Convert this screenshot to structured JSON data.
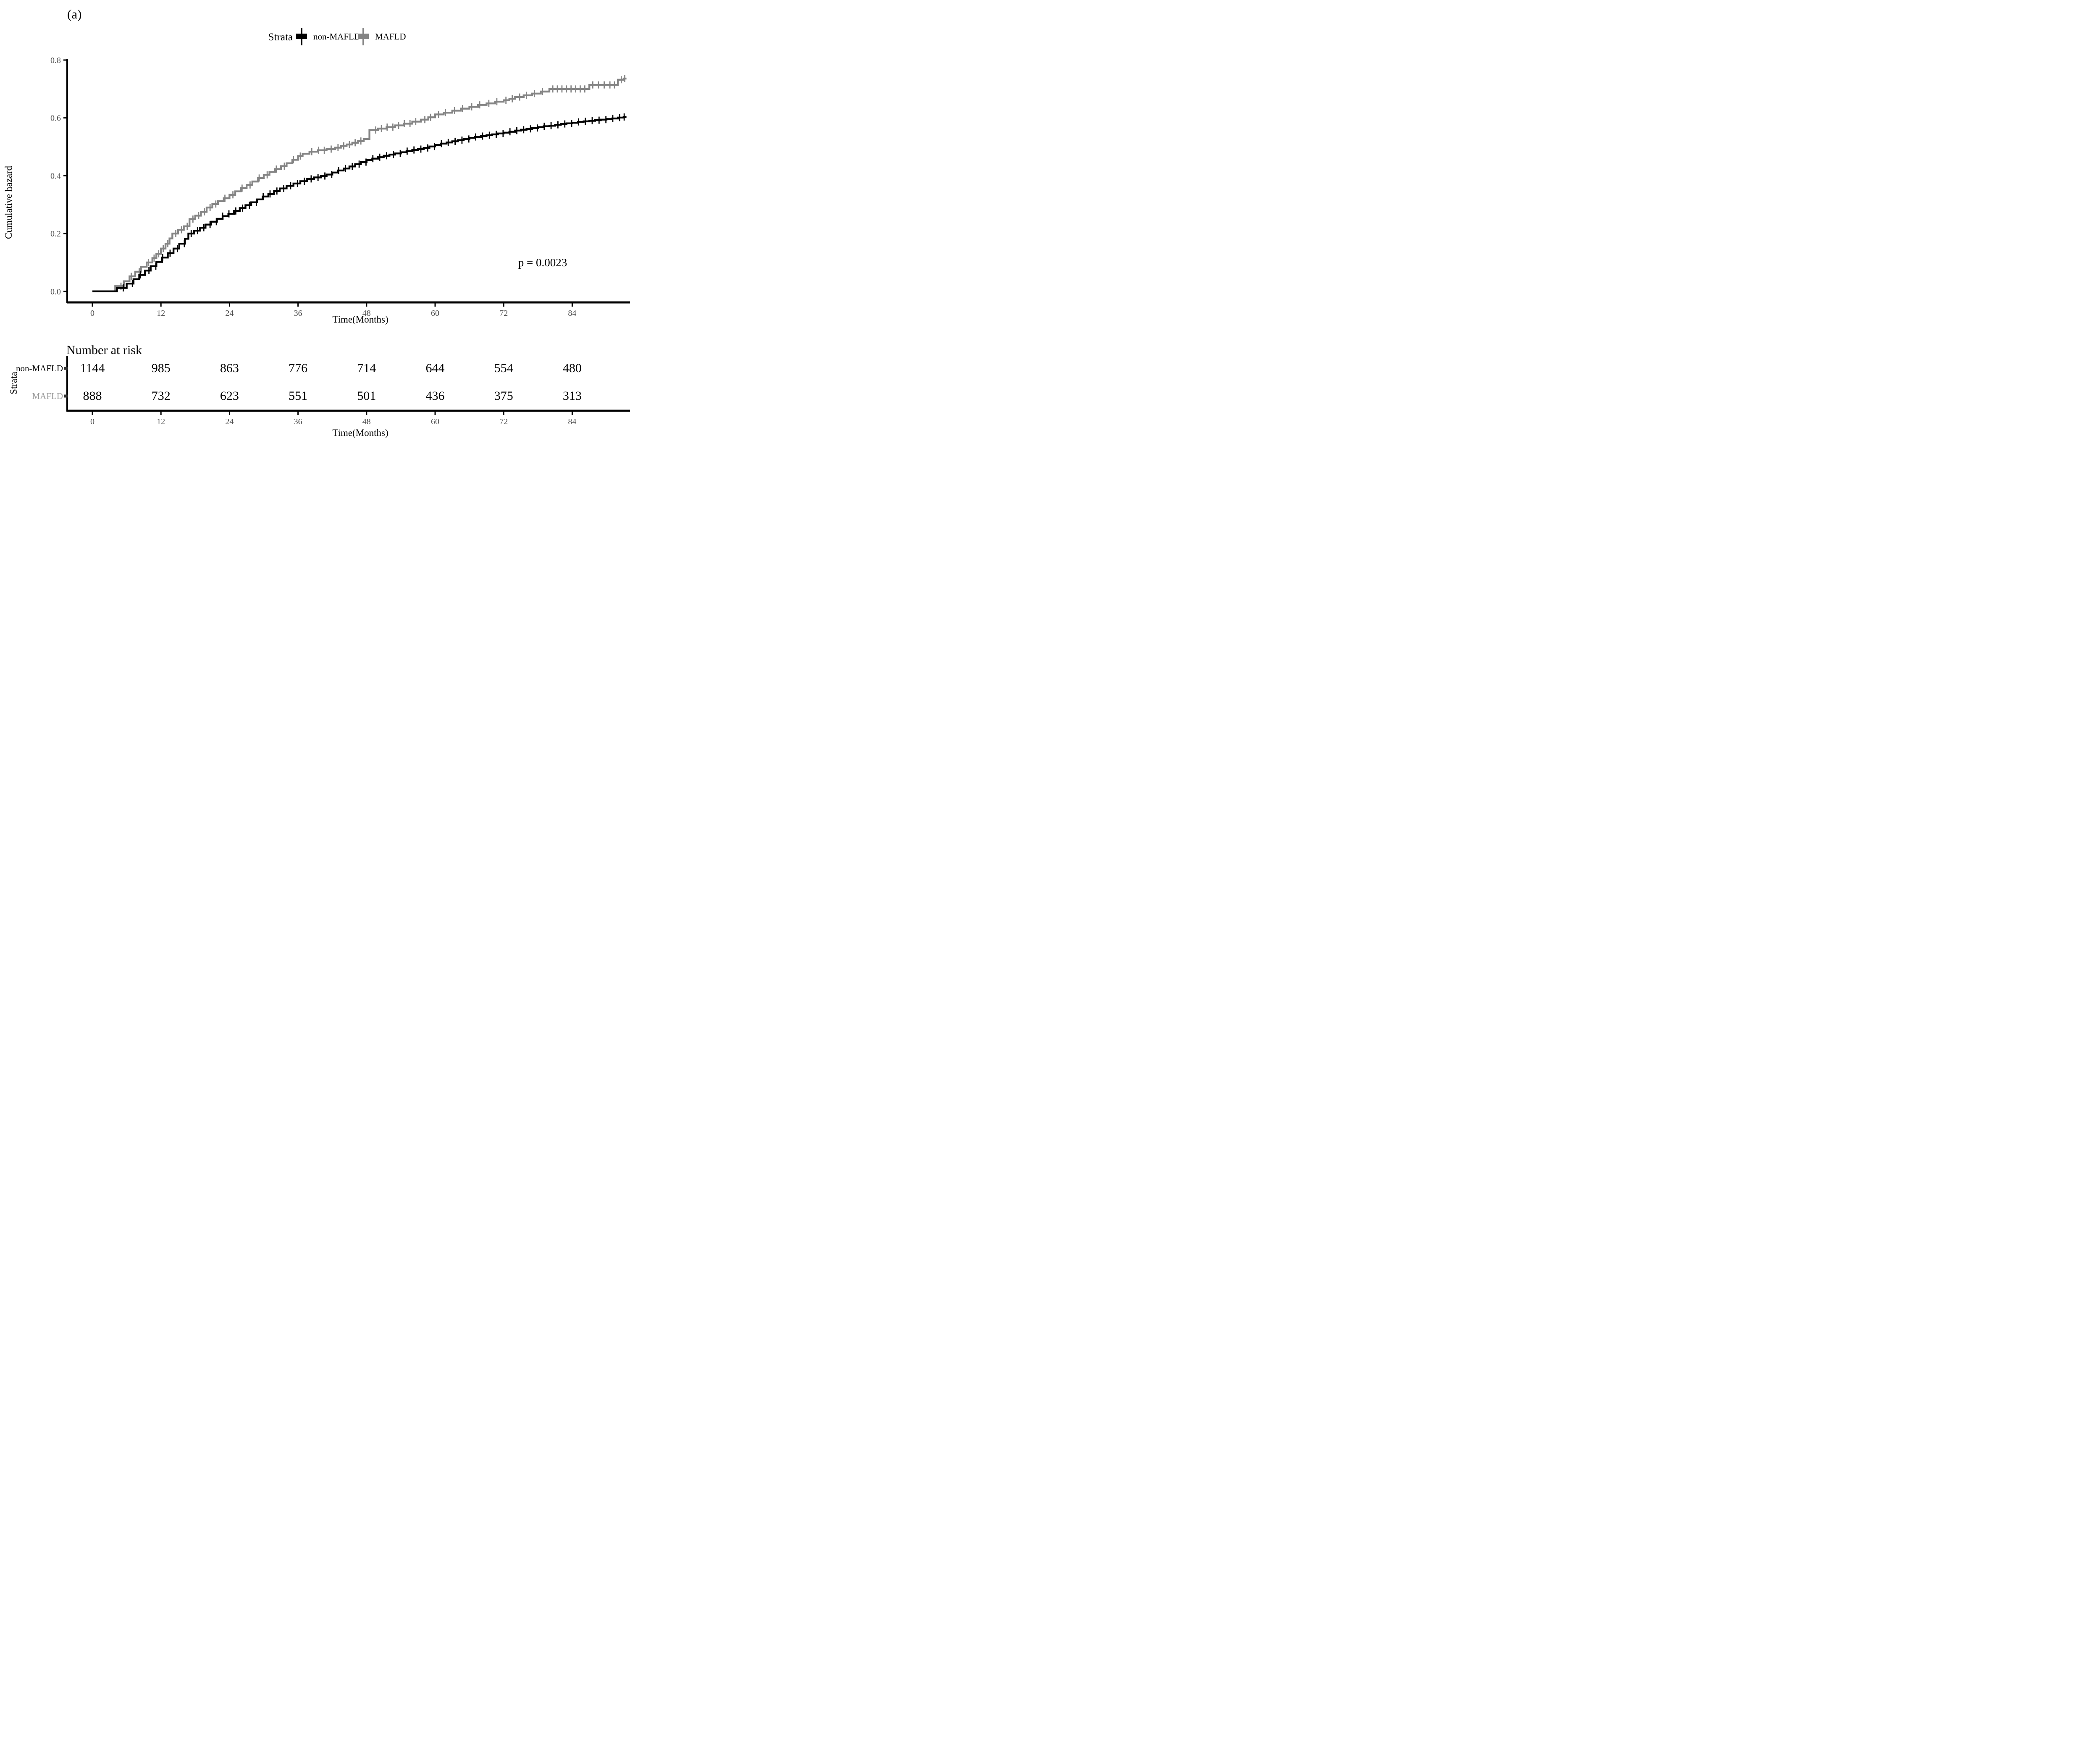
{
  "panel_label": "(a)",
  "legend": {
    "title": "Strata",
    "items": [
      {
        "label": "non-MAFLD",
        "color": "#000000"
      },
      {
        "label": "MAFLD",
        "color": "#848484"
      }
    ]
  },
  "p_value": "p = 0.0023",
  "y_axis": {
    "title": "Cumulative hazard",
    "tick_labels": [
      "0.0",
      "0.2",
      "0.4",
      "0.6",
      "0.8"
    ],
    "tick_values": [
      0,
      0.2,
      0.4,
      0.6,
      0.8
    ],
    "range": [
      0,
      0.8
    ]
  },
  "x_axis": {
    "title": "Time(Months)",
    "tick_labels": [
      "0",
      "12",
      "24",
      "36",
      "48",
      "60",
      "72",
      "84"
    ],
    "tick_values": [
      0,
      12,
      24,
      36,
      48,
      60,
      72,
      84
    ]
  },
  "risk_table": {
    "title": "Number at risk",
    "axis_label": "Strata",
    "x_title": "Time(Months)",
    "rows": [
      {
        "label": "non-MAFLD",
        "color": "#000000",
        "values": [
          "1144",
          "985",
          "863",
          "776",
          "714",
          "644",
          "554",
          "480"
        ]
      },
      {
        "label": "MAFLD",
        "color": "#9a9a9a",
        "values": [
          "888",
          "732",
          "623",
          "551",
          "501",
          "436",
          "375",
          "313"
        ]
      }
    ]
  },
  "colors": {
    "axis": "#000000",
    "tick_text": "#4d4d4d",
    "non_mafld": "#000000",
    "mafld": "#848484"
  },
  "chart_data": {
    "type": "line",
    "subtype": "step-cumulative-hazard",
    "xlabel": "Time(Months)",
    "ylabel": "Cumulative hazard",
    "xlim": [
      0,
      93.5
    ],
    "ylim": [
      0,
      0.8
    ],
    "grid": false,
    "legend_position": "top",
    "series": [
      {
        "name": "MAFLD",
        "color": "#848484",
        "points": [
          [
            0,
            0
          ],
          [
            4,
            0.018
          ],
          [
            5.5,
            0.035
          ],
          [
            6.5,
            0.052
          ],
          [
            7.5,
            0.068
          ],
          [
            8.5,
            0.085
          ],
          [
            9.5,
            0.1
          ],
          [
            10.5,
            0.115
          ],
          [
            11.2,
            0.13
          ],
          [
            12,
            0.148
          ],
          [
            12.8,
            0.165
          ],
          [
            13.5,
            0.183
          ],
          [
            14,
            0.2
          ],
          [
            15,
            0.213
          ],
          [
            16,
            0.225
          ],
          [
            17,
            0.25
          ],
          [
            18,
            0.262
          ],
          [
            19,
            0.275
          ],
          [
            20,
            0.29
          ],
          [
            21,
            0.302
          ],
          [
            22,
            0.312
          ],
          [
            23,
            0.322
          ],
          [
            24,
            0.334
          ],
          [
            25,
            0.346
          ],
          [
            26,
            0.357
          ],
          [
            27,
            0.368
          ],
          [
            28,
            0.38
          ],
          [
            29,
            0.392
          ],
          [
            30,
            0.403
          ],
          [
            31,
            0.413
          ],
          [
            32,
            0.423
          ],
          [
            33,
            0.433
          ],
          [
            34,
            0.443
          ],
          [
            35,
            0.455
          ],
          [
            36,
            0.468
          ],
          [
            36.8,
            0.476
          ],
          [
            38,
            0.483
          ],
          [
            39.5,
            0.488
          ],
          [
            41,
            0.492
          ],
          [
            42.5,
            0.497
          ],
          [
            43.5,
            0.503
          ],
          [
            44.5,
            0.508
          ],
          [
            45.5,
            0.514
          ],
          [
            46.5,
            0.52
          ],
          [
            47.5,
            0.527
          ],
          [
            48.5,
            0.558
          ],
          [
            50,
            0.563
          ],
          [
            51.5,
            0.568
          ],
          [
            53,
            0.574
          ],
          [
            54.5,
            0.58
          ],
          [
            56,
            0.587
          ],
          [
            57.5,
            0.594
          ],
          [
            58.8,
            0.602
          ],
          [
            60,
            0.612
          ],
          [
            61.5,
            0.618
          ],
          [
            63,
            0.625
          ],
          [
            64.5,
            0.632
          ],
          [
            66,
            0.638
          ],
          [
            67.5,
            0.645
          ],
          [
            69,
            0.65
          ],
          [
            70.5,
            0.656
          ],
          [
            72,
            0.661
          ],
          [
            73,
            0.666
          ],
          [
            74,
            0.672
          ],
          [
            75.5,
            0.678
          ],
          [
            77,
            0.684
          ],
          [
            78.5,
            0.691
          ],
          [
            80,
            0.7
          ],
          [
            87,
            0.714
          ],
          [
            92,
            0.732
          ],
          [
            93,
            0.736
          ]
        ],
        "censor_times": [
          5,
          6.8,
          8.2,
          9.8,
          10.8,
          11.6,
          12.4,
          13.2,
          14.6,
          15.6,
          16.6,
          17.6,
          18.6,
          19.6,
          20.6,
          21.6,
          23.2,
          24.6,
          26.2,
          27.6,
          29.2,
          30.6,
          32.2,
          33.6,
          35.2,
          36.4,
          38.4,
          39.6,
          40.6,
          41.8,
          43,
          44,
          45,
          46,
          47,
          49.6,
          50.6,
          51.6,
          52.6,
          53.6,
          54.6,
          55.6,
          56.6,
          58.2,
          59.2,
          60.6,
          61.8,
          63.4,
          64.8,
          66.4,
          67.8,
          69.4,
          70.8,
          72.4,
          73.5,
          74.8,
          76,
          77.4,
          78.8,
          80.6,
          81.4,
          82.2,
          83,
          83.8,
          84.6,
          85.4,
          86.2,
          87.6,
          88.6,
          89.6,
          90.6,
          91.4,
          92.6,
          93.2
        ]
      },
      {
        "name": "non-MAFLD",
        "color": "#000000",
        "points": [
          [
            0,
            0
          ],
          [
            4.3,
            0.012
          ],
          [
            6,
            0.027
          ],
          [
            7.2,
            0.042
          ],
          [
            8.2,
            0.057
          ],
          [
            9.2,
            0.072
          ],
          [
            10.2,
            0.087
          ],
          [
            11.2,
            0.102
          ],
          [
            12.2,
            0.117
          ],
          [
            13.2,
            0.132
          ],
          [
            14.2,
            0.148
          ],
          [
            15.2,
            0.165
          ],
          [
            16.2,
            0.182
          ],
          [
            16.8,
            0.2
          ],
          [
            17.8,
            0.21
          ],
          [
            18.8,
            0.22
          ],
          [
            19.8,
            0.231
          ],
          [
            20.8,
            0.241
          ],
          [
            21.8,
            0.251
          ],
          [
            22.8,
            0.26
          ],
          [
            23.8,
            0.268
          ],
          [
            24.8,
            0.278
          ],
          [
            25.8,
            0.288
          ],
          [
            26.8,
            0.298
          ],
          [
            27.8,
            0.308
          ],
          [
            28.8,
            0.318
          ],
          [
            29.8,
            0.328
          ],
          [
            30.8,
            0.337
          ],
          [
            31.8,
            0.347
          ],
          [
            32.8,
            0.356
          ],
          [
            34,
            0.365
          ],
          [
            35.2,
            0.373
          ],
          [
            36.4,
            0.381
          ],
          [
            37.6,
            0.389
          ],
          [
            38.8,
            0.394
          ],
          [
            40,
            0.399
          ],
          [
            41,
            0.404
          ],
          [
            42,
            0.411
          ],
          [
            43,
            0.418
          ],
          [
            44,
            0.425
          ],
          [
            45,
            0.432
          ],
          [
            46,
            0.44
          ],
          [
            47,
            0.447
          ],
          [
            48,
            0.454
          ],
          [
            49,
            0.459
          ],
          [
            50,
            0.464
          ],
          [
            51,
            0.469
          ],
          [
            52,
            0.473
          ],
          [
            53,
            0.477
          ],
          [
            54,
            0.481
          ],
          [
            55,
            0.485
          ],
          [
            56,
            0.489
          ],
          [
            57,
            0.492
          ],
          [
            58,
            0.496
          ],
          [
            59,
            0.501
          ],
          [
            60,
            0.506
          ],
          [
            61,
            0.511
          ],
          [
            62,
            0.515
          ],
          [
            63,
            0.519
          ],
          [
            64,
            0.523
          ],
          [
            65,
            0.527
          ],
          [
            66,
            0.531
          ],
          [
            67,
            0.534
          ],
          [
            68,
            0.537
          ],
          [
            69,
            0.54
          ],
          [
            70,
            0.543
          ],
          [
            71,
            0.546
          ],
          [
            72,
            0.549
          ],
          [
            73,
            0.552
          ],
          [
            74,
            0.556
          ],
          [
            75,
            0.559
          ],
          [
            76,
            0.562
          ],
          [
            77,
            0.565
          ],
          [
            78,
            0.568
          ],
          [
            79,
            0.571
          ],
          [
            80,
            0.573
          ],
          [
            81,
            0.576
          ],
          [
            82,
            0.579
          ],
          [
            83,
            0.581
          ],
          [
            84,
            0.583
          ],
          [
            85,
            0.586
          ],
          [
            86,
            0.588
          ],
          [
            87,
            0.59
          ],
          [
            88,
            0.592
          ],
          [
            89,
            0.594
          ],
          [
            90,
            0.596
          ],
          [
            91,
            0.598
          ],
          [
            92,
            0.601
          ],
          [
            93,
            0.603
          ]
        ],
        "censor_times": [
          5.4,
          7,
          8.4,
          9.9,
          11.1,
          12.3,
          13.6,
          14.9,
          16.1,
          17.3,
          18.4,
          19.5,
          20.6,
          21.7,
          22.8,
          23.9,
          25.1,
          26.3,
          27.5,
          28.7,
          29.9,
          31.1,
          32.3,
          33.5,
          34.7,
          35.9,
          37.1,
          38.3,
          39.5,
          40.7,
          41.9,
          43.1,
          44.3,
          45.5,
          46.7,
          47.9,
          49.1,
          50.3,
          51.5,
          52.7,
          53.9,
          55.1,
          56.3,
          57.5,
          58.7,
          59.9,
          61.1,
          62.3,
          63.5,
          64.7,
          65.9,
          67.1,
          68.3,
          69.5,
          70.7,
          71.9,
          73.1,
          74.3,
          75.5,
          76.7,
          77.9,
          79.1,
          80.3,
          81.5,
          82.7,
          83.9,
          85.1,
          86.3,
          87.5,
          88.7,
          89.9,
          91.1,
          92.3,
          93.1
        ]
      }
    ]
  }
}
